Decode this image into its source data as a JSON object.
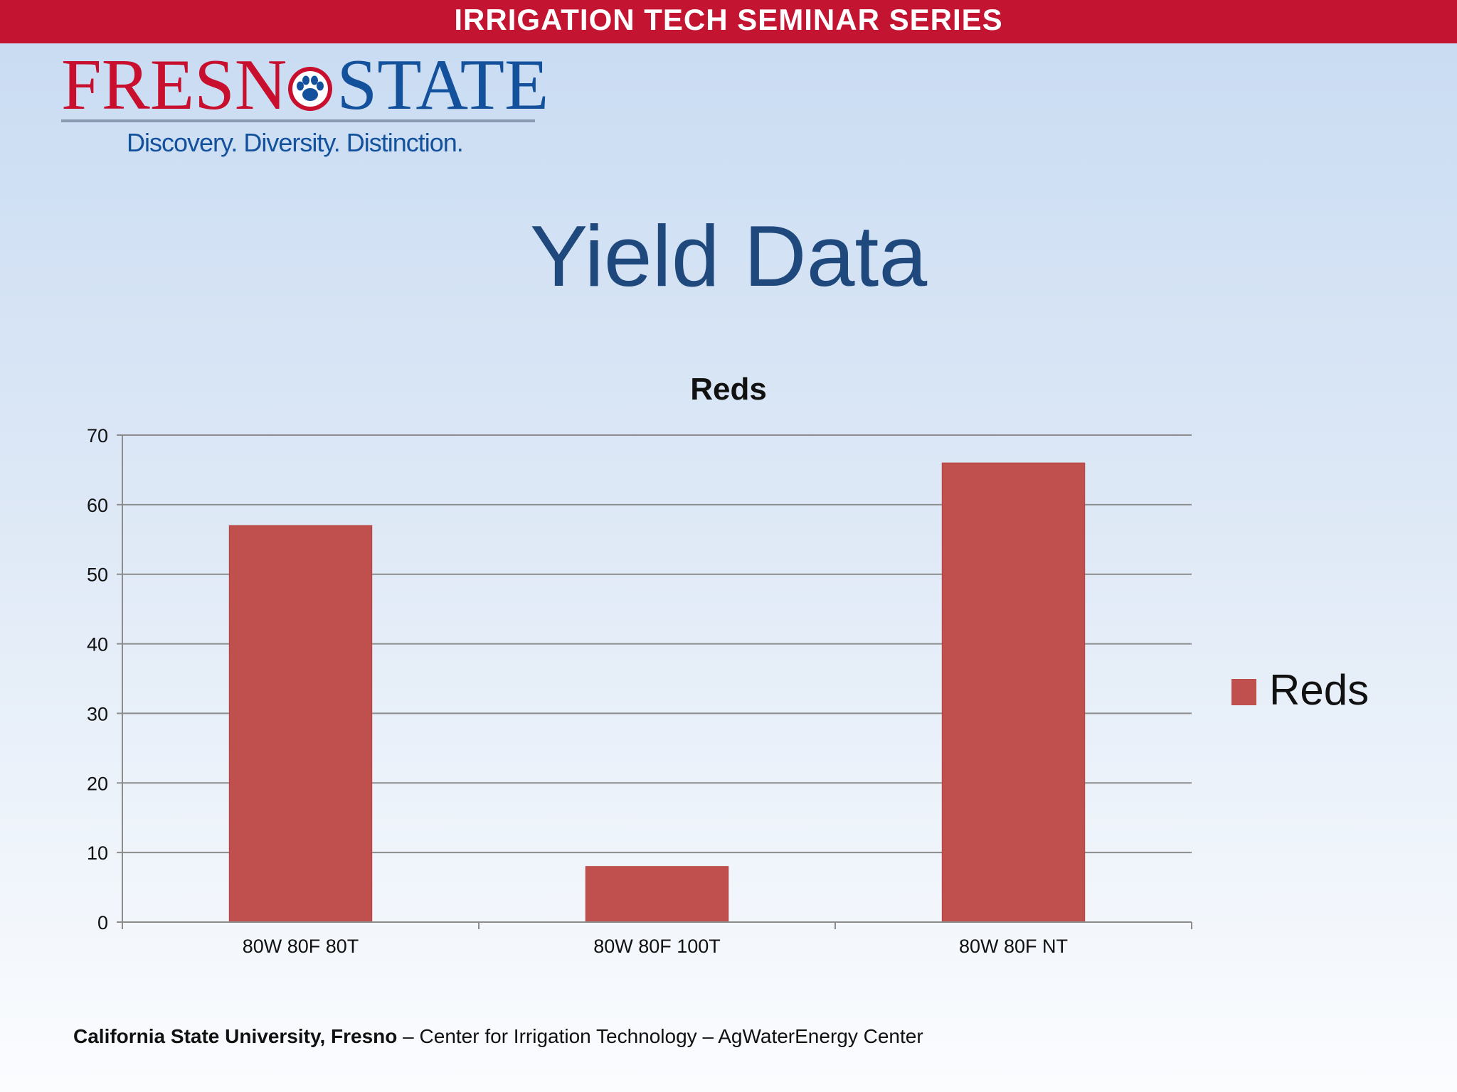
{
  "banner": {
    "title": "IRRIGATION TECH SEMINAR SERIES"
  },
  "logo": {
    "word_part1": "FRESN",
    "word_part2": "STATE",
    "tagline": "Discovery. Diversity. Distinction.",
    "colors": {
      "red": "#c8102e",
      "blue": "#13519c"
    },
    "icon": "paw-icon"
  },
  "slide": {
    "title": "Yield Data"
  },
  "chart_data": {
    "type": "bar",
    "title": "Reds",
    "categories": [
      "80W 80F 80T",
      "80W 80F 100T",
      "80W 80F NT"
    ],
    "series": [
      {
        "name": "Reds",
        "values": [
          57,
          8,
          66
        ],
        "color": "#c0504d"
      }
    ],
    "ylim": [
      0,
      70
    ],
    "yticks": [
      0,
      10,
      20,
      30,
      40,
      50,
      60,
      70
    ],
    "xlabel": "",
    "ylabel": "",
    "grid": true,
    "legend": "right"
  },
  "footer": {
    "institution": "California State University, Fresno",
    "rest": " – Center for Irrigation Technology – AgWaterEnergy Center"
  }
}
